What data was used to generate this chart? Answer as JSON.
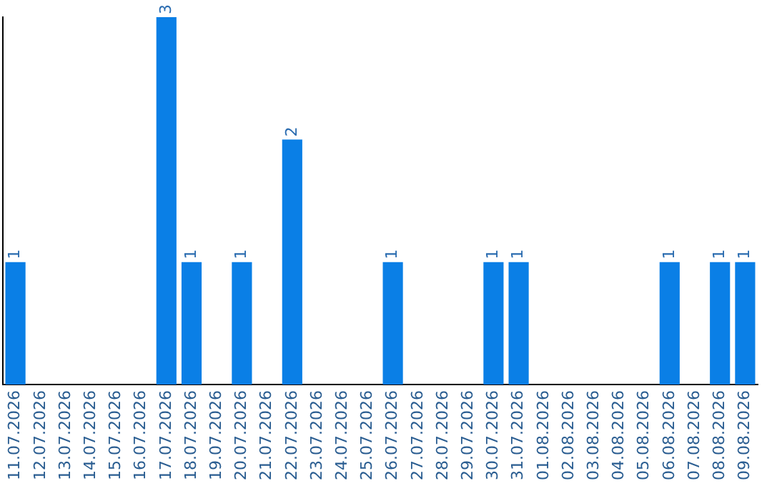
{
  "chart_data": {
    "type": "bar",
    "categories": [
      "11.07.2026",
      "12.07.2026",
      "13.07.2026",
      "14.07.2026",
      "15.07.2026",
      "16.07.2026",
      "17.07.2026",
      "18.07.2026",
      "19.07.2026",
      "20.07.2026",
      "21.07.2026",
      "22.07.2026",
      "23.07.2026",
      "24.07.2026",
      "25.07.2026",
      "26.07.2026",
      "27.07.2026",
      "28.07.2026",
      "29.07.2026",
      "30.07.2026",
      "31.07.2026",
      "01.08.2026",
      "02.08.2026",
      "03.08.2026",
      "04.08.2026",
      "05.08.2026",
      "06.08.2026",
      "07.08.2026",
      "08.08.2026",
      "09.08.2026"
    ],
    "values": [
      1,
      0,
      0,
      0,
      0,
      0,
      3,
      1,
      0,
      1,
      0,
      2,
      0,
      0,
      0,
      1,
      0,
      0,
      0,
      1,
      1,
      0,
      0,
      0,
      0,
      0,
      1,
      0,
      1,
      1
    ],
    "value_labels": [
      "1",
      null,
      null,
      null,
      null,
      null,
      "3",
      "1",
      null,
      "1",
      null,
      "2",
      null,
      null,
      null,
      "1",
      null,
      null,
      null,
      "1",
      "1",
      null,
      null,
      null,
      null,
      null,
      "1",
      null,
      "1",
      "1"
    ],
    "color": "#0a7fe6",
    "ylim": [
      0,
      3
    ],
    "grid": false,
    "legend": false,
    "tick_labels": "x"
  }
}
